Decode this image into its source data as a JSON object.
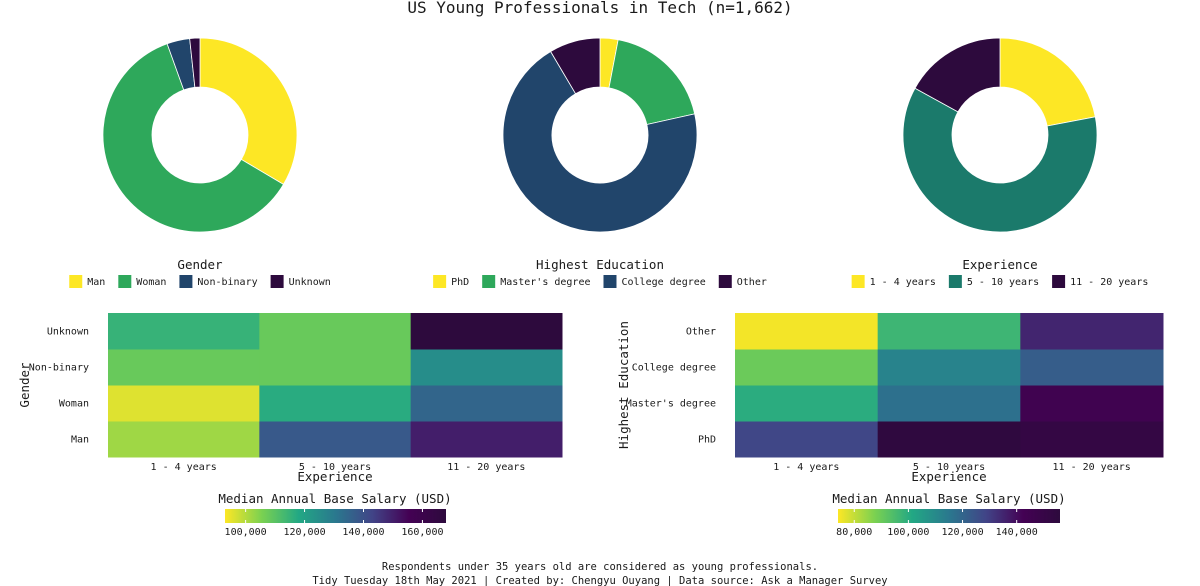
{
  "title": "US Young Professionals in Tech (n=1,662)",
  "caption_line1": "Respondents under 35 years old are considered as young professionals.",
  "caption_line2": "Tidy Tuesday 18th May 2021 | Created by: Chengyu Ouyang | Data source: Ask a Manager Survey",
  "colors": {
    "man": "#fde725",
    "woman": "#2ea85b",
    "non_binary": "#21456b",
    "unknown": "#2d0a3d",
    "phd": "#fde725",
    "masters": "#2ea85b",
    "college": "#21456b",
    "other_edu": "#2d0a3d",
    "exp_1_4": "#fde725",
    "exp_5_10": "#1b7a6b",
    "exp_11_20": "#2d0a3d",
    "gradient": [
      "#fde725",
      "#7ad151",
      "#22a884",
      "#2a788e",
      "#414487",
      "#440154",
      "#2d0a3d"
    ]
  },
  "chart_data": [
    {
      "type": "pie",
      "donut": true,
      "legend_title": "Gender",
      "legend_position": "bottom",
      "slices": [
        {
          "label": "Man",
          "value": 33.5,
          "color_key": "man"
        },
        {
          "label": "Woman",
          "value": 61.0,
          "color_key": "woman"
        },
        {
          "label": "Non-binary",
          "value": 3.8,
          "color_key": "non_binary"
        },
        {
          "label": "Unknown",
          "value": 1.7,
          "color_key": "unknown"
        }
      ]
    },
    {
      "type": "pie",
      "donut": true,
      "legend_title": "Highest Education",
      "legend_position": "bottom",
      "slices": [
        {
          "label": "PhD",
          "value": 3.0,
          "color_key": "phd"
        },
        {
          "label": "Master's degree",
          "value": 18.5,
          "color_key": "masters"
        },
        {
          "label": "College degree",
          "value": 70.0,
          "color_key": "college"
        },
        {
          "label": "Other",
          "value": 8.5,
          "color_key": "other_edu"
        }
      ]
    },
    {
      "type": "pie",
      "donut": true,
      "legend_title": "Experience",
      "legend_position": "bottom",
      "slices": [
        {
          "label": "1 - 4 years",
          "value": 22.0,
          "color_key": "exp_1_4"
        },
        {
          "label": "5 - 10 years",
          "value": 61.0,
          "color_key": "exp_5_10"
        },
        {
          "label": "11 - 20 years",
          "value": 17.0,
          "color_key": "exp_11_20"
        }
      ]
    },
    {
      "type": "heatmap",
      "xlabel": "Experience",
      "ylabel": "Gender",
      "x": [
        "1 - 4 years",
        "5 - 10 years",
        "11 - 20 years"
      ],
      "y": [
        "Man",
        "Woman",
        "Non-binary",
        "Unknown"
      ],
      "values": [
        [
          102000,
          138000,
          150000
        ],
        [
          96000,
          117000,
          135000
        ],
        [
          108000,
          108000,
          125000
        ],
        [
          115000,
          108000,
          168000
        ]
      ],
      "legend_title": "Median Annual Base Salary (USD)",
      "colorbar_range": [
        93000,
        168000
      ],
      "colorbar_ticks": [
        100000,
        120000,
        140000,
        160000
      ],
      "colorbar_tick_labels": [
        "100,000",
        "120,000",
        "140,000",
        "160,000"
      ]
    },
    {
      "type": "heatmap",
      "xlabel": "Experience",
      "ylabel": "Highest Education",
      "x": [
        "1 - 4 years",
        "5 - 10 years",
        "11 - 20 years"
      ],
      "y": [
        "PhD",
        "Master's degree",
        "College degree",
        "Other"
      ],
      "values": [
        [
          128000,
          155000,
          152000
        ],
        [
          100000,
          117000,
          145000
        ],
        [
          90000,
          112000,
          122000
        ],
        [
          75000,
          97000,
          135000
        ]
      ],
      "legend_title": "Median Annual Base Salary (USD)",
      "colorbar_range": [
        74000,
        156000
      ],
      "colorbar_ticks": [
        80000,
        100000,
        120000,
        140000
      ],
      "colorbar_tick_labels": [
        "80,000",
        "100,000",
        "120,000",
        "140,000"
      ]
    }
  ]
}
